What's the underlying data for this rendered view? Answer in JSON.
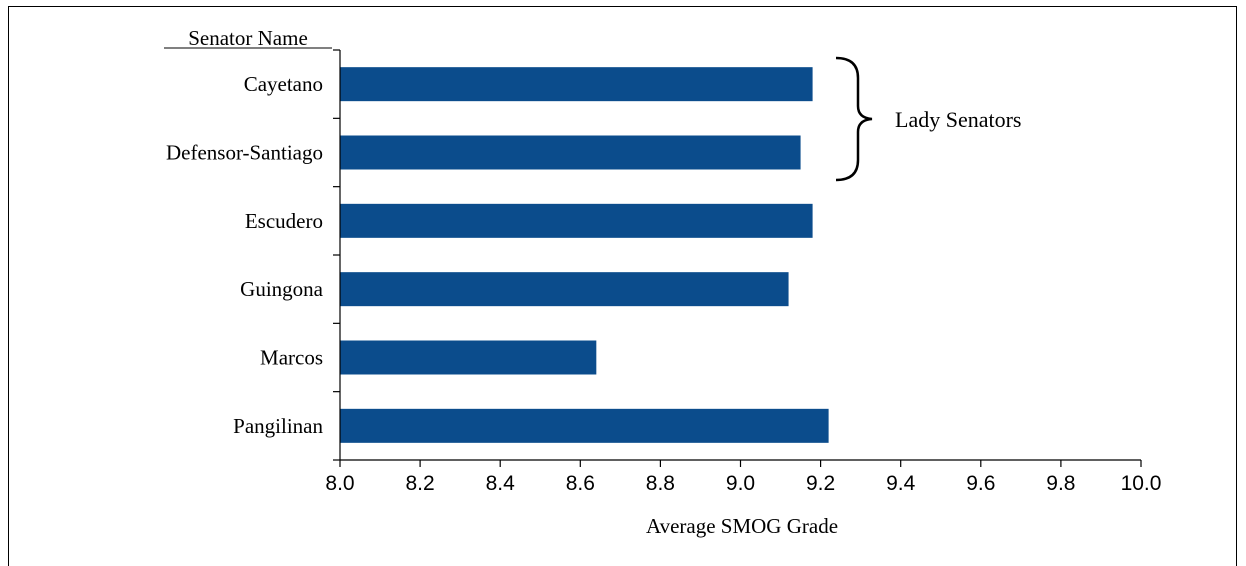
{
  "chart_data": {
    "type": "bar",
    "orientation": "horizontal",
    "categories": [
      "Cayetano",
      "Defensor-Santiago",
      "Escudero",
      "Guingona",
      "Marcos",
      "Pangilinan"
    ],
    "values": [
      9.18,
      9.15,
      9.18,
      9.12,
      8.64,
      9.22
    ],
    "category_axis_title": "Senator Name",
    "xlabel": "Average SMOG Grade",
    "xlim": [
      8.0,
      10.0
    ],
    "x_ticks": [
      "8.0",
      "8.2",
      "8.4",
      "8.6",
      "8.8",
      "9.0",
      "9.2",
      "9.4",
      "9.6",
      "9.8",
      "10.0"
    ],
    "bar_color": "#0b4c8c",
    "grid": false,
    "annotation": {
      "text": "Lady Senators",
      "categories": [
        "Cayetano",
        "Defensor-Santiago"
      ]
    }
  }
}
